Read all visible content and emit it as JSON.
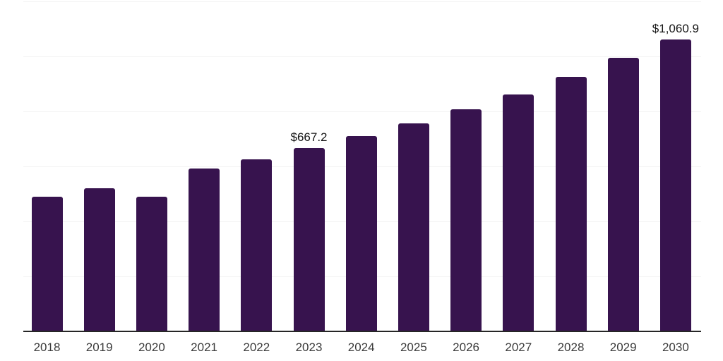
{
  "chart": {
    "background_color": "#ffffff",
    "bar_color": "#37134E",
    "gridline_color": "#f3f3f3",
    "axis_line_color": "#262626",
    "x_label_color": "#3a3a3a",
    "data_label_color": "#141414"
  },
  "chart_data": {
    "type": "bar",
    "title": "",
    "xlabel": "",
    "ylabel": "",
    "categories": [
      "2018",
      "2019",
      "2020",
      "2021",
      "2022",
      "2023",
      "2024",
      "2025",
      "2026",
      "2027",
      "2028",
      "2029",
      "2030"
    ],
    "values": [
      490.5,
      520.2,
      488.7,
      591.1,
      625.1,
      667.2,
      709.6,
      757.4,
      808.6,
      862.3,
      926.3,
      994.1,
      1060.9
    ],
    "data_labels": [
      {
        "category": "2023",
        "text": "$667.2"
      },
      {
        "category": "2030",
        "text": "$1,060.9"
      }
    ],
    "ylim": [
      0,
      1200
    ],
    "grid_step": 200,
    "grid": "horizontal-only",
    "y_tick_labels_visible": false,
    "legend": "none"
  }
}
